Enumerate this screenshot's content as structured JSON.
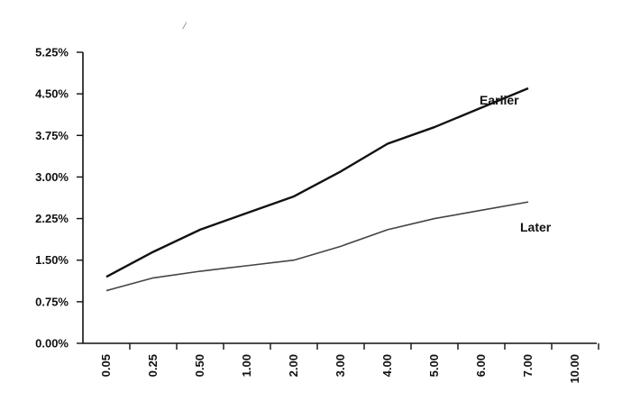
{
  "chart_data": {
    "type": "line",
    "categories": [
      "0.05",
      "0.25",
      "0.50",
      "1.00",
      "2.00",
      "3.00",
      "4.00",
      "5.00",
      "6.00",
      "7.00",
      "10.00"
    ],
    "y_ticks": [
      "0.00%",
      "0.75%",
      "1.50%",
      "2.25%",
      "3.00%",
      "3.75%",
      "4.50%",
      "5.25%"
    ],
    "ylim": [
      0,
      5.25
    ],
    "grid": false,
    "series": [
      {
        "name": "Earlier",
        "values": [
          1.2,
          1.65,
          2.05,
          2.35,
          2.65,
          3.1,
          3.6,
          3.9,
          4.25,
          4.6,
          null
        ],
        "color": "#111111"
      },
      {
        "name": "Later",
        "values": [
          0.95,
          1.18,
          1.3,
          1.4,
          1.5,
          1.75,
          2.05,
          2.25,
          2.4,
          2.55,
          null
        ],
        "color": "#444444"
      }
    ]
  }
}
